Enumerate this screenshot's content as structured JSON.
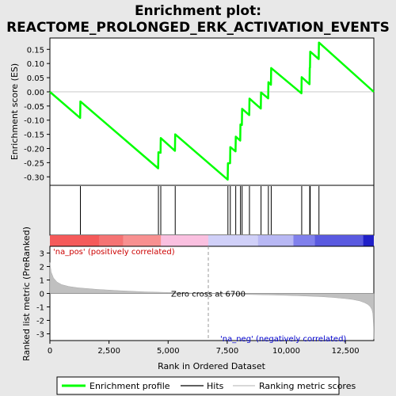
{
  "chart_data": {
    "type": "line",
    "title_line1": "Enrichment plot:",
    "title_line2": "REACTOME_PROLONGED_ERK_ACTIVATION_EVENTS",
    "es_panel": {
      "ylabel": "Enrichment score (ES)",
      "ylim": [
        -0.33,
        0.19
      ],
      "yticks": [
        0.15,
        0.1,
        0.05,
        0.0,
        -0.05,
        -0.1,
        -0.15,
        -0.2,
        -0.25,
        -0.3
      ],
      "ytick_labels": [
        "0.15",
        "0.10",
        "0.05",
        "0.00",
        "-0.05",
        "-0.10",
        "-0.15",
        "-0.20",
        "-0.25",
        "-0.30"
      ],
      "line_color": "#00ff00",
      "series": [
        {
          "x": [
            0,
            1280,
            1290,
            4580,
            4590,
            4680,
            4690,
            5290,
            5300,
            7520,
            7530,
            7620,
            7630,
            7850,
            7860,
            8050,
            8060,
            8120,
            8130,
            8430,
            8440,
            8920,
            8930,
            9230,
            9240,
            9350,
            9360,
            10640,
            10650,
            10980,
            10990,
            11000,
            11010,
            11370,
            11380,
            13700
          ],
          "y": [
            0.0,
            -0.092,
            -0.034,
            -0.27,
            -0.213,
            -0.215,
            -0.163,
            -0.208,
            -0.15,
            -0.31,
            -0.252,
            -0.252,
            -0.195,
            -0.21,
            -0.158,
            -0.172,
            -0.115,
            -0.117,
            -0.06,
            -0.082,
            -0.024,
            -0.059,
            -0.002,
            -0.023,
            0.034,
            0.025,
            0.084,
            -0.005,
            0.052,
            0.027,
            0.084,
            0.086,
            0.142,
            0.116,
            0.174,
            0.0
          ]
        }
      ]
    },
    "hits": [
      1290,
      4590,
      4690,
      5300,
      7530,
      7630,
      7860,
      8060,
      8130,
      8440,
      8930,
      9240,
      9360,
      10650,
      10990,
      11010,
      11380
    ],
    "rank_panel": {
      "ylabel": "Ranked list metric (PreRanked)",
      "xlabel": "Rank in Ordered Dataset",
      "ylim": [
        -3.5,
        3.5
      ],
      "yticks": [
        3,
        2,
        1,
        0,
        -1,
        -2,
        -3
      ],
      "ytick_labels": [
        "3",
        "2",
        "1",
        "0",
        "-1",
        "-2",
        "-3"
      ],
      "xlim": [
        0,
        13700
      ],
      "xticks": [
        0,
        2500,
        5000,
        7500,
        10000,
        12500
      ],
      "xtick_labels": [
        "0",
        "2,500",
        "5,000",
        "7,500",
        "10,000",
        "12,500"
      ],
      "zero_cross": 6700,
      "zero_cross_label": "Zero cross at 6700",
      "pos_label": "'na_pos' (positively correlated)",
      "neg_label": "'na_neg' (negatively correlated)",
      "metric_curve": {
        "x": [
          0,
          50,
          150,
          300,
          500,
          800,
          1200,
          2000,
          3000,
          4000,
          5000,
          6000,
          6700,
          7500,
          8500,
          9500,
          10500,
          11500,
          12000,
          12500,
          12800,
          13100,
          13300,
          13450,
          13550,
          13620,
          13660,
          13690,
          13700
        ],
        "y": [
          2.3,
          1.6,
          1.15,
          0.85,
          0.65,
          0.52,
          0.42,
          0.3,
          0.2,
          0.12,
          0.07,
          0.03,
          0.0,
          -0.04,
          -0.08,
          -0.12,
          -0.17,
          -0.24,
          -0.3,
          -0.38,
          -0.45,
          -0.55,
          -0.68,
          -0.82,
          -0.98,
          -1.2,
          -1.5,
          -2.5,
          -3.4
        ]
      }
    },
    "color_bar": {
      "segments": [
        {
          "from": 0,
          "to": 2100,
          "color": "#f55a5a"
        },
        {
          "from": 2100,
          "to": 3100,
          "color": "#f57373"
        },
        {
          "from": 3100,
          "to": 4700,
          "color": "#f89090"
        },
        {
          "from": 4700,
          "to": 6700,
          "color": "#fac0e0"
        },
        {
          "from": 6700,
          "to": 8800,
          "color": "#d0d0f8"
        },
        {
          "from": 8800,
          "to": 10300,
          "color": "#b8b8f4"
        },
        {
          "from": 10300,
          "to": 11200,
          "color": "#8080ec"
        },
        {
          "from": 11200,
          "to": 13250,
          "color": "#5a5ae0"
        },
        {
          "from": 13250,
          "to": 13700,
          "color": "#2020c8"
        }
      ]
    },
    "legend": {
      "items": [
        {
          "label": "Enrichment profile",
          "color": "#00ff00",
          "kind": "thick"
        },
        {
          "label": "Hits",
          "color": "#000000",
          "kind": "thin"
        },
        {
          "label": "Ranking metric scores",
          "color": "#c0c0c0",
          "kind": "thin"
        }
      ]
    }
  }
}
